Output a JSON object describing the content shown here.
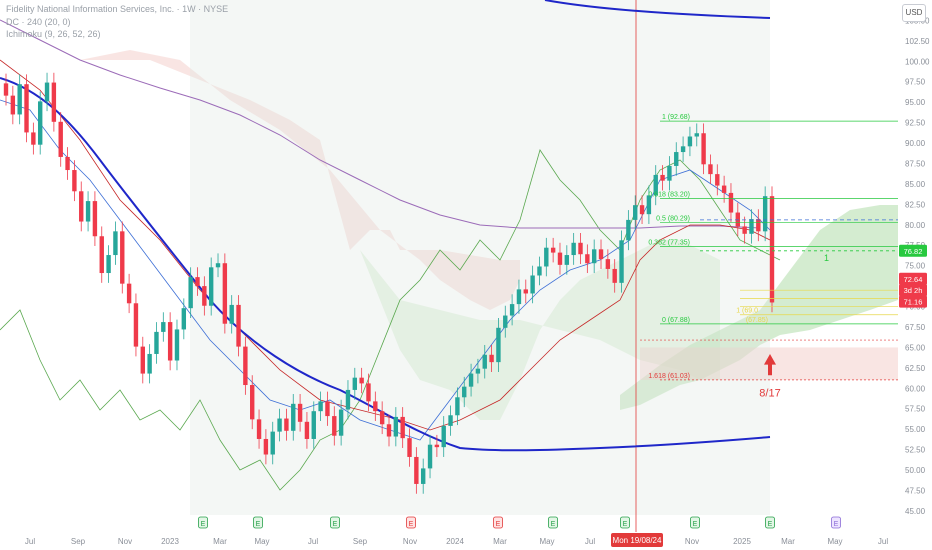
{
  "header": {
    "legend": [
      "Fidelity National Information Services, Inc. · 1W · NYSE",
      "DC · 240 (20, 0)",
      "Ichimoku (9, 26, 52, 26)"
    ],
    "currency": "USD"
  },
  "colors": {
    "up": "#26a69a",
    "down": "#ef3a4a",
    "ma200": "#1f27c9",
    "ma_purple": "#9b6bb8",
    "kijun": "#c62828",
    "tenkan": "#3d6fd6",
    "chikou": "#5aa84f",
    "cloud_bull": "#b8e0b0",
    "cloud_bear": "#f2c6c0",
    "fib": "#27c93f",
    "fib_ext": "#e8d84a",
    "arrow": "#e23a3a"
  },
  "chart_data": {
    "type": "candlestick",
    "title": "Fidelity National Information Services, Inc. · 1W · NYSE",
    "x_tick_labels": [
      "Jul",
      "Sep",
      "Nov",
      "2023",
      "Mar",
      "May",
      "Jul",
      "Sep",
      "Nov",
      "2024",
      "Mar",
      "May",
      "Jul",
      "Mon 19/08/24",
      "Nov",
      "2025",
      "Mar",
      "May",
      "Jul"
    ],
    "ylim": [
      44.5,
      107.5
    ],
    "y_ticks": [
      45.0,
      47.5,
      50.0,
      52.5,
      55.0,
      57.5,
      60.0,
      62.5,
      65.0,
      67.5,
      70.0,
      72.5,
      75.0,
      77.5,
      80.0,
      82.5,
      85.0,
      87.5,
      90.0,
      92.5,
      95.0,
      97.5,
      100.0,
      102.5,
      105.0
    ],
    "price_close": [
      95.8,
      93.5,
      97.2,
      91.3,
      89.8,
      95.1,
      97.4,
      92.6,
      88.3,
      86.7,
      84.1,
      80.4,
      82.9,
      78.6,
      74.1,
      76.3,
      79.2,
      72.8,
      70.4,
      65.1,
      61.8,
      64.2,
      66.9,
      68.1,
      63.4,
      67.2,
      69.8,
      73.6,
      72.5,
      70.1,
      74.8,
      75.3,
      67.9,
      70.2,
      65.1,
      60.4,
      56.2,
      53.8,
      51.9,
      54.7,
      56.3,
      54.8,
      58.1,
      55.9,
      53.8,
      57.2,
      58.4,
      56.6,
      54.2,
      57.4,
      59.8,
      61.3,
      60.6,
      58.4,
      57.2,
      55.6,
      54.1,
      56.5,
      53.9,
      51.6,
      48.3,
      50.2,
      53.1,
      52.8,
      55.4,
      56.7,
      58.9,
      60.2,
      61.8,
      62.4,
      64.1,
      63.2,
      67.4,
      68.9,
      70.3,
      72.1,
      71.6,
      73.8,
      74.9,
      77.2,
      76.6,
      75.1,
      76.3,
      77.8,
      76.4,
      75.3,
      77.0,
      75.8,
      74.6,
      72.9,
      78.1,
      80.6,
      82.4,
      81.3,
      83.6,
      86.1,
      85.4,
      87.2,
      88.9,
      89.6,
      90.8,
      91.2,
      87.4,
      86.2,
      84.8,
      83.9,
      81.5,
      79.8,
      78.9,
      80.7,
      79.2,
      83.5,
      70.5
    ],
    "last_price": "72.64",
    "countdown": "3d 2h",
    "ma200_last": "71.16",
    "ichimoku_marker": "76.82",
    "fibonacci": [
      {
        "label": "1 (92.68)",
        "value": 92.68
      },
      {
        "label": "0.618 (83.20)",
        "value": 83.2
      },
      {
        "label": "0.5 (80.29)",
        "value": 80.29
      },
      {
        "label": "0.382 (77.35)",
        "value": 77.35
      },
      {
        "label": "0 (67.88)",
        "value": 67.88
      },
      {
        "label": "1.618 (61.03)",
        "value": 61.03
      }
    ],
    "fib_ext_labels": [
      "1 (69.0",
      "(67.85)"
    ],
    "annotations": {
      "cursor_date": "Mon 19/08/24",
      "arrow_label": "8/17",
      "wave_label": "1"
    },
    "earnings_marker": "E",
    "earnings_labels": [
      "E",
      "E",
      "E",
      "E",
      "E",
      "E",
      "E",
      "E",
      "E",
      "E",
      "E",
      "E"
    ]
  }
}
